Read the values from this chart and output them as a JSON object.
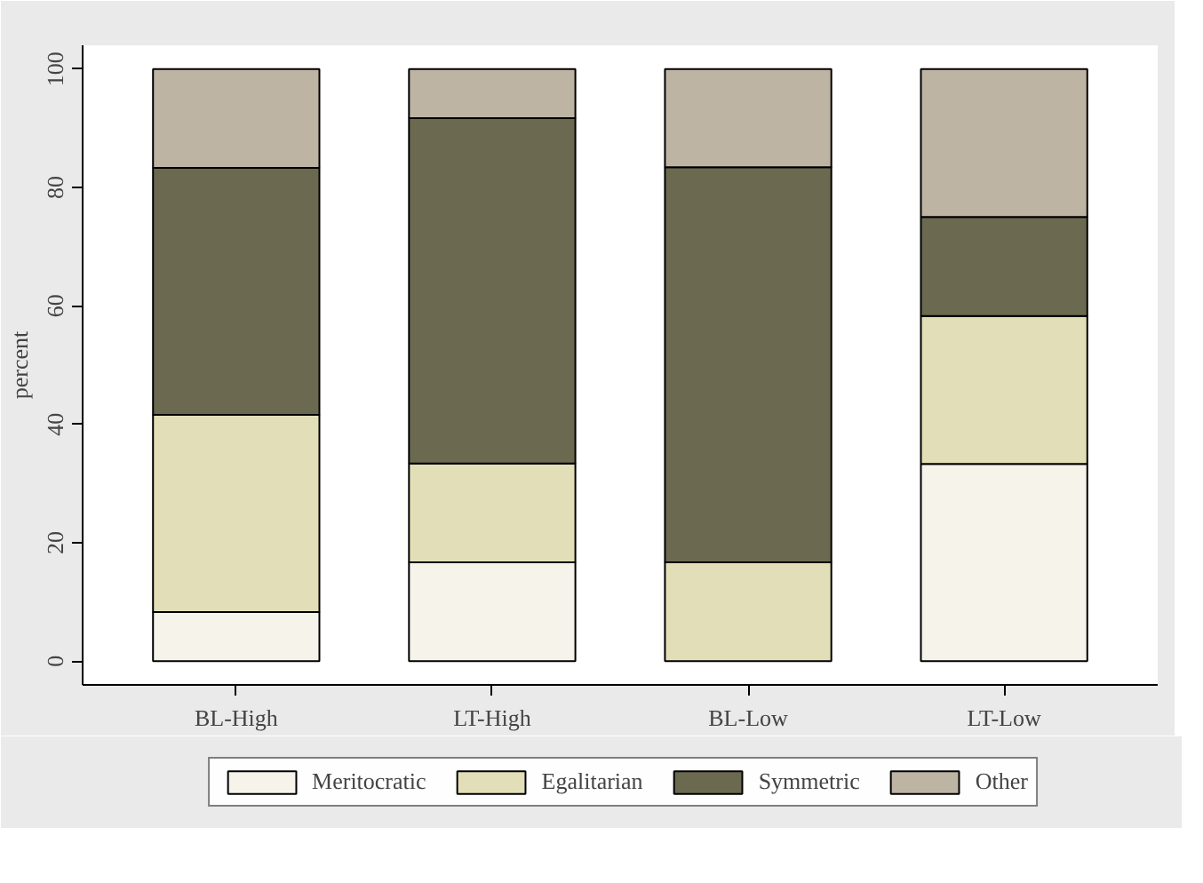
{
  "chart_data": {
    "type": "bar",
    "stacked": true,
    "ylabel": "percent",
    "categories": [
      "BL-High",
      "LT-High",
      "BL-Low",
      "LT-Low"
    ],
    "series": [
      {
        "name": "Meritocratic",
        "color": "#f5f3ea",
        "values": [
          8.3,
          16.7,
          0,
          33.3
        ]
      },
      {
        "name": "Egalitarian",
        "color": "#e2dfb8",
        "values": [
          33.3,
          16.7,
          16.7,
          25
        ]
      },
      {
        "name": "Symmetric",
        "color": "#6b6a50",
        "values": [
          41.7,
          58.3,
          66.7,
          16.7
        ]
      },
      {
        "name": "Other",
        "color": "#bdb4a4",
        "values": [
          16.7,
          8.3,
          16.6,
          25
        ]
      }
    ],
    "ylim": [
      -4,
      104
    ],
    "yticks": [
      0,
      20,
      40,
      60,
      80,
      100
    ],
    "grid": false,
    "legend": "bottom"
  }
}
